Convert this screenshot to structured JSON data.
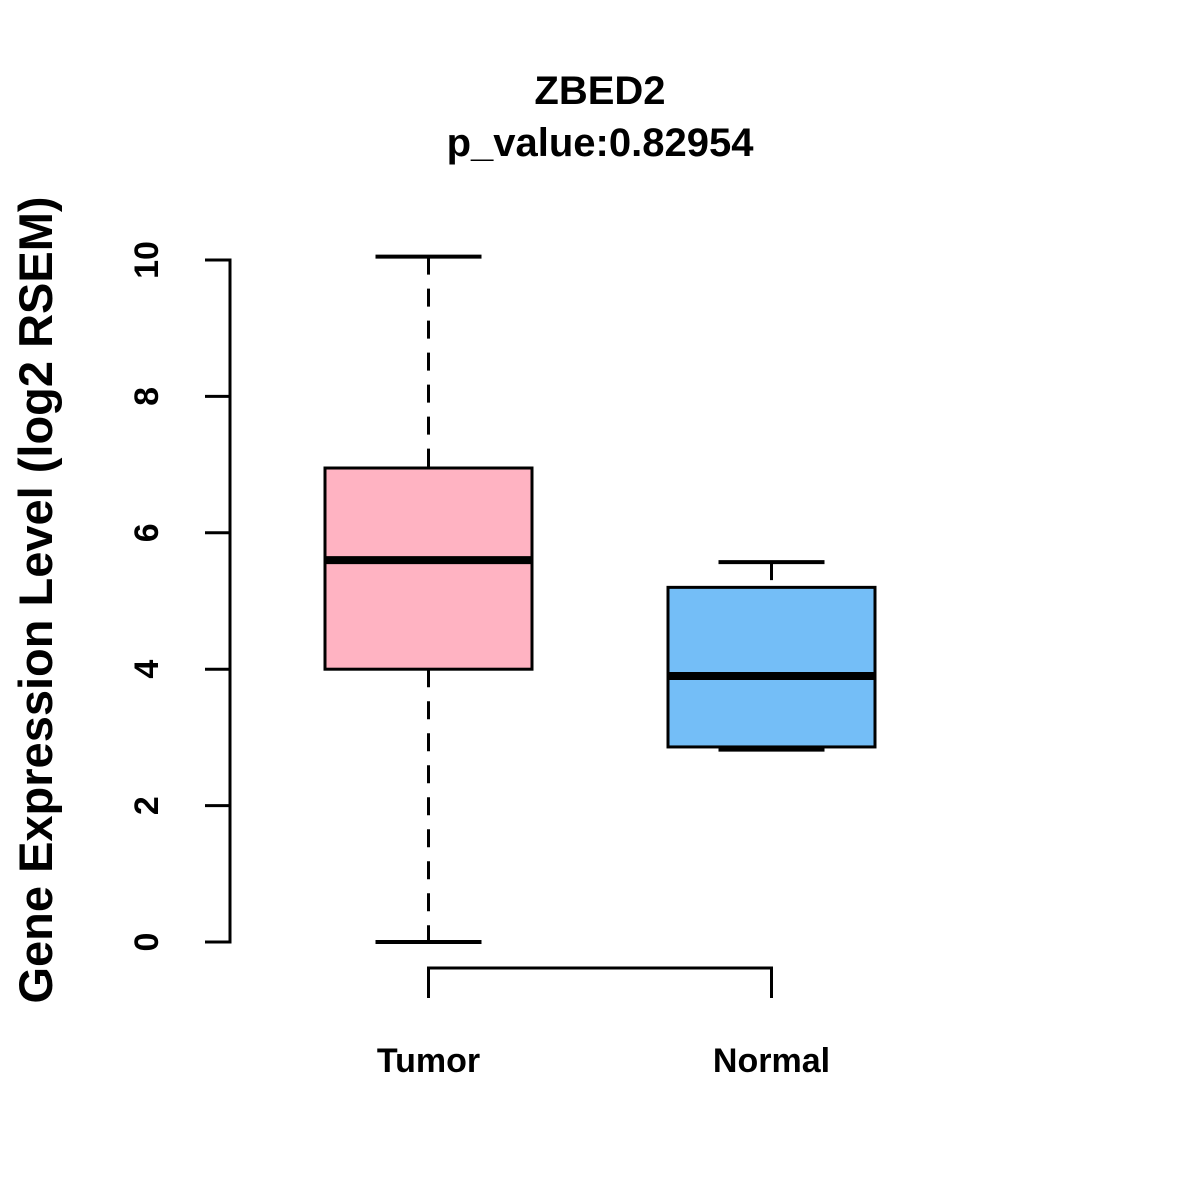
{
  "chart_data": {
    "type": "boxplot",
    "title": "ZBED2",
    "subtitle": "p_value:0.82954",
    "gene": "ZBED2",
    "p_value": 0.82954,
    "ylabel": "Gene Expression Level (log2 RSEM)",
    "ylim": [
      0,
      10
    ],
    "yticks": [
      0,
      2,
      4,
      6,
      8,
      10
    ],
    "categories": [
      "Tumor",
      "Normal"
    ],
    "series": [
      {
        "name": "Tumor",
        "color": "#FFB3C2",
        "whisker_low": 0.0,
        "q1": 4.0,
        "median": 5.6,
        "q3": 6.95,
        "whisker_high": 10.05
      },
      {
        "name": "Normal",
        "color": "#74BEF7",
        "whisker_low": 2.82,
        "q1": 2.86,
        "median": 3.9,
        "q3": 5.2,
        "whisker_high": 5.57
      }
    ],
    "legend": null,
    "grid": false,
    "axis_color": "#000000"
  }
}
